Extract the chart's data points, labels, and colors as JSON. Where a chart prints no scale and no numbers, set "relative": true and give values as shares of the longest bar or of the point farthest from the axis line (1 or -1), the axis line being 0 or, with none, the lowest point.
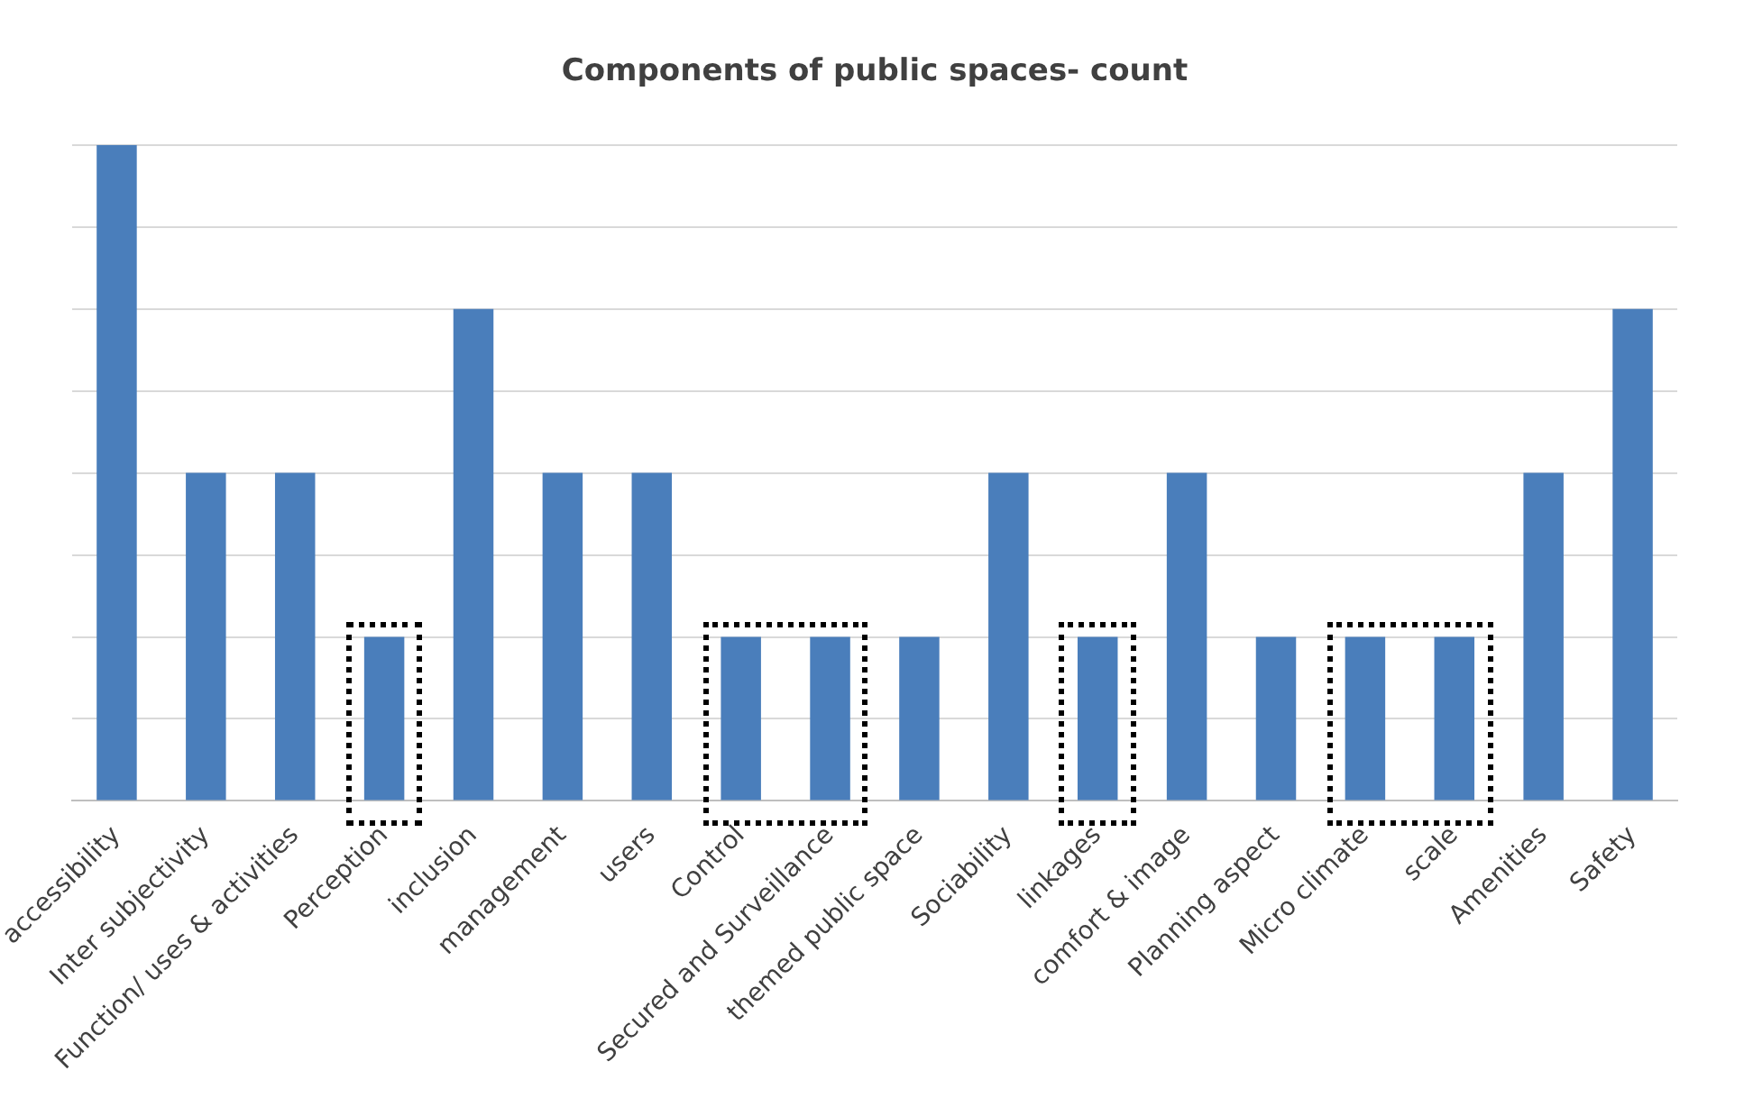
{
  "chart_data": {
    "type": "bar",
    "title": "Components of public spaces- count",
    "categories": [
      "accessibility",
      "Inter subjectivity",
      "Function/ uses & activities",
      "Perception",
      "inclusion",
      "management",
      "users",
      "Control",
      "Secured and Surveillance",
      "themed public space",
      "Sociability",
      "linkages",
      "comfort & image",
      "Planning aspect",
      "Micro climate",
      "scale",
      "Amenities",
      "Safety"
    ],
    "values": [
      1,
      0.5,
      0.5,
      0.25,
      0.75,
      0.5,
      0.5,
      0.25,
      0.25,
      0.25,
      0.5,
      0.25,
      0.5,
      0.25,
      0.25,
      0.25,
      0.5,
      0.75
    ],
    "color": "#4a7ebb",
    "relative": true,
    "grid": "y"
  }
}
